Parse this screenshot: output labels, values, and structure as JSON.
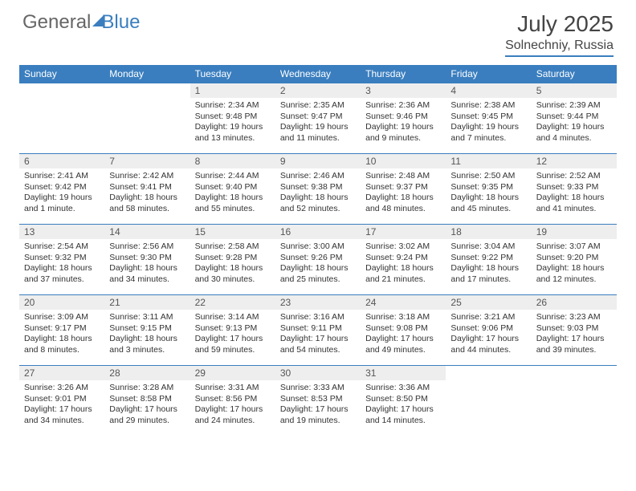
{
  "brand": {
    "part1": "General",
    "part2": "Blue"
  },
  "title": {
    "month": "July 2025",
    "location": "Solnechniy, Russia"
  },
  "colors": {
    "accent": "#3a7ebf",
    "header_bg": "#3a7ebf",
    "daynum_bg": "#eeeeee",
    "text": "#333333"
  },
  "weekdays": [
    "Sunday",
    "Monday",
    "Tuesday",
    "Wednesday",
    "Thursday",
    "Friday",
    "Saturday"
  ],
  "weeks": [
    [
      {
        "n": "",
        "sr": "",
        "ss": "",
        "dl": ""
      },
      {
        "n": "",
        "sr": "",
        "ss": "",
        "dl": ""
      },
      {
        "n": "1",
        "sr": "Sunrise: 2:34 AM",
        "ss": "Sunset: 9:48 PM",
        "dl": "Daylight: 19 hours and 13 minutes."
      },
      {
        "n": "2",
        "sr": "Sunrise: 2:35 AM",
        "ss": "Sunset: 9:47 PM",
        "dl": "Daylight: 19 hours and 11 minutes."
      },
      {
        "n": "3",
        "sr": "Sunrise: 2:36 AM",
        "ss": "Sunset: 9:46 PM",
        "dl": "Daylight: 19 hours and 9 minutes."
      },
      {
        "n": "4",
        "sr": "Sunrise: 2:38 AM",
        "ss": "Sunset: 9:45 PM",
        "dl": "Daylight: 19 hours and 7 minutes."
      },
      {
        "n": "5",
        "sr": "Sunrise: 2:39 AM",
        "ss": "Sunset: 9:44 PM",
        "dl": "Daylight: 19 hours and 4 minutes."
      }
    ],
    [
      {
        "n": "6",
        "sr": "Sunrise: 2:41 AM",
        "ss": "Sunset: 9:42 PM",
        "dl": "Daylight: 19 hours and 1 minute."
      },
      {
        "n": "7",
        "sr": "Sunrise: 2:42 AM",
        "ss": "Sunset: 9:41 PM",
        "dl": "Daylight: 18 hours and 58 minutes."
      },
      {
        "n": "8",
        "sr": "Sunrise: 2:44 AM",
        "ss": "Sunset: 9:40 PM",
        "dl": "Daylight: 18 hours and 55 minutes."
      },
      {
        "n": "9",
        "sr": "Sunrise: 2:46 AM",
        "ss": "Sunset: 9:38 PM",
        "dl": "Daylight: 18 hours and 52 minutes."
      },
      {
        "n": "10",
        "sr": "Sunrise: 2:48 AM",
        "ss": "Sunset: 9:37 PM",
        "dl": "Daylight: 18 hours and 48 minutes."
      },
      {
        "n": "11",
        "sr": "Sunrise: 2:50 AM",
        "ss": "Sunset: 9:35 PM",
        "dl": "Daylight: 18 hours and 45 minutes."
      },
      {
        "n": "12",
        "sr": "Sunrise: 2:52 AM",
        "ss": "Sunset: 9:33 PM",
        "dl": "Daylight: 18 hours and 41 minutes."
      }
    ],
    [
      {
        "n": "13",
        "sr": "Sunrise: 2:54 AM",
        "ss": "Sunset: 9:32 PM",
        "dl": "Daylight: 18 hours and 37 minutes."
      },
      {
        "n": "14",
        "sr": "Sunrise: 2:56 AM",
        "ss": "Sunset: 9:30 PM",
        "dl": "Daylight: 18 hours and 34 minutes."
      },
      {
        "n": "15",
        "sr": "Sunrise: 2:58 AM",
        "ss": "Sunset: 9:28 PM",
        "dl": "Daylight: 18 hours and 30 minutes."
      },
      {
        "n": "16",
        "sr": "Sunrise: 3:00 AM",
        "ss": "Sunset: 9:26 PM",
        "dl": "Daylight: 18 hours and 25 minutes."
      },
      {
        "n": "17",
        "sr": "Sunrise: 3:02 AM",
        "ss": "Sunset: 9:24 PM",
        "dl": "Daylight: 18 hours and 21 minutes."
      },
      {
        "n": "18",
        "sr": "Sunrise: 3:04 AM",
        "ss": "Sunset: 9:22 PM",
        "dl": "Daylight: 18 hours and 17 minutes."
      },
      {
        "n": "19",
        "sr": "Sunrise: 3:07 AM",
        "ss": "Sunset: 9:20 PM",
        "dl": "Daylight: 18 hours and 12 minutes."
      }
    ],
    [
      {
        "n": "20",
        "sr": "Sunrise: 3:09 AM",
        "ss": "Sunset: 9:17 PM",
        "dl": "Daylight: 18 hours and 8 minutes."
      },
      {
        "n": "21",
        "sr": "Sunrise: 3:11 AM",
        "ss": "Sunset: 9:15 PM",
        "dl": "Daylight: 18 hours and 3 minutes."
      },
      {
        "n": "22",
        "sr": "Sunrise: 3:14 AM",
        "ss": "Sunset: 9:13 PM",
        "dl": "Daylight: 17 hours and 59 minutes."
      },
      {
        "n": "23",
        "sr": "Sunrise: 3:16 AM",
        "ss": "Sunset: 9:11 PM",
        "dl": "Daylight: 17 hours and 54 minutes."
      },
      {
        "n": "24",
        "sr": "Sunrise: 3:18 AM",
        "ss": "Sunset: 9:08 PM",
        "dl": "Daylight: 17 hours and 49 minutes."
      },
      {
        "n": "25",
        "sr": "Sunrise: 3:21 AM",
        "ss": "Sunset: 9:06 PM",
        "dl": "Daylight: 17 hours and 44 minutes."
      },
      {
        "n": "26",
        "sr": "Sunrise: 3:23 AM",
        "ss": "Sunset: 9:03 PM",
        "dl": "Daylight: 17 hours and 39 minutes."
      }
    ],
    [
      {
        "n": "27",
        "sr": "Sunrise: 3:26 AM",
        "ss": "Sunset: 9:01 PM",
        "dl": "Daylight: 17 hours and 34 minutes."
      },
      {
        "n": "28",
        "sr": "Sunrise: 3:28 AM",
        "ss": "Sunset: 8:58 PM",
        "dl": "Daylight: 17 hours and 29 minutes."
      },
      {
        "n": "29",
        "sr": "Sunrise: 3:31 AM",
        "ss": "Sunset: 8:56 PM",
        "dl": "Daylight: 17 hours and 24 minutes."
      },
      {
        "n": "30",
        "sr": "Sunrise: 3:33 AM",
        "ss": "Sunset: 8:53 PM",
        "dl": "Daylight: 17 hours and 19 minutes."
      },
      {
        "n": "31",
        "sr": "Sunrise: 3:36 AM",
        "ss": "Sunset: 8:50 PM",
        "dl": "Daylight: 17 hours and 14 minutes."
      },
      {
        "n": "",
        "sr": "",
        "ss": "",
        "dl": ""
      },
      {
        "n": "",
        "sr": "",
        "ss": "",
        "dl": ""
      }
    ]
  ]
}
